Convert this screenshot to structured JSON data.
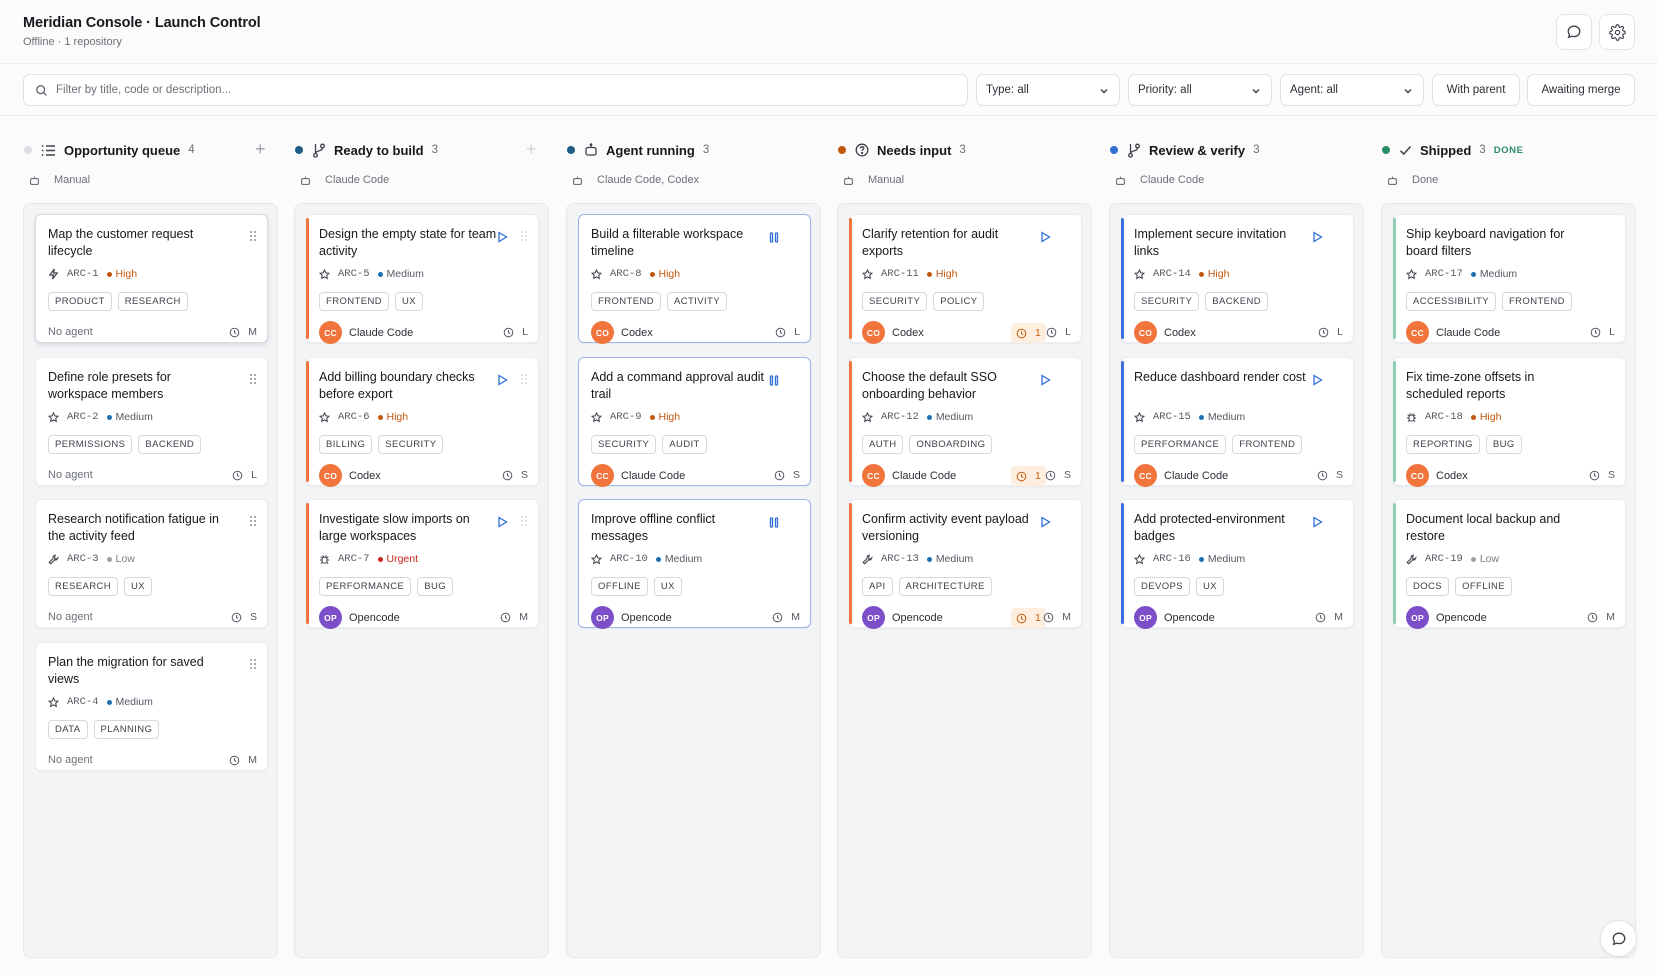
{
  "header": {
    "title": "Meridian Console · Launch Control",
    "subtitle": "Offline · 1 repository",
    "icons": [
      "chat-icon",
      "gear-icon"
    ]
  },
  "toolbar": {
    "search_placeholder": "Filter by title, code or description...",
    "type_filter": "Type: all",
    "priority_filter": "Priority: all",
    "agent_filter": "Agent: all",
    "with_parent_label": "With parent",
    "awaiting_merge_label": "Awaiting merge"
  },
  "colors": {
    "high": "#c2570c",
    "medium": "#1e6fb0",
    "low": "#9aa0a8",
    "urgent": "#c8241e",
    "codex_avatar": "#f0743c",
    "opencode_avatar": "#7c4fc8"
  },
  "columns": [
    {
      "title": "Opportunity queue",
      "count": "4",
      "meta": "Manual",
      "dot_color": "#dcdee2",
      "icon": "list-icon",
      "cards": [
        {
          "title": "Map the customer request lifecycle",
          "type_icon": "bolt-icon",
          "code": "ARC-1",
          "priority": "High",
          "prio_key": "high",
          "tags": [
            "PRODUCT",
            "RESEARCH"
          ],
          "agent": "No agent",
          "estimate": "M",
          "selected": true
        },
        {
          "title": "Define role presets for workspace members",
          "type_icon": "star-icon",
          "code": "ARC-2",
          "priority": "Medium",
          "prio_key": "medium",
          "tags": [
            "PERMISSIONS",
            "BACKEND"
          ],
          "agent": "No agent",
          "estimate": "L"
        },
        {
          "title": "Research notification fatigue in the activity feed",
          "type_icon": "wrench-icon",
          "code": "ARC-3",
          "priority": "Low",
          "prio_key": "low",
          "tags": [
            "RESEARCH",
            "UX"
          ],
          "agent": "No agent",
          "estimate": "S"
        },
        {
          "title": "Plan the migration for saved views",
          "type_icon": "star-icon",
          "code": "ARC-4",
          "priority": "Medium",
          "prio_key": "medium",
          "tags": [
            "DATA",
            "PLANNING"
          ],
          "agent": "No agent",
          "estimate": "M"
        }
      ]
    },
    {
      "title": "Ready to build",
      "count": "3",
      "meta": "Claude Code",
      "dot_color": "#1d5c86",
      "icon": "branch-icon",
      "cards": [
        {
          "title": "Design the empty state for team activity",
          "type_icon": "star-icon",
          "code": "ARC-5",
          "priority": "Medium",
          "prio_key": "medium",
          "tags": [
            "FRONTEND",
            "UX"
          ],
          "agent": "Claude Code",
          "avatar": "CC",
          "estimate": "L"
        },
        {
          "title": "Add billing boundary checks before export",
          "type_icon": "star-icon",
          "code": "ARC-6",
          "priority": "High",
          "prio_key": "high",
          "tags": [
            "BILLING",
            "SECURITY"
          ],
          "agent": "Codex",
          "avatar": "CO",
          "estimate": "S"
        },
        {
          "title": "Investigate slow imports on large workspaces",
          "type_icon": "bug-icon",
          "code": "ARC-7",
          "priority": "Urgent",
          "prio_key": "urgent",
          "tags": [
            "PERFORMANCE",
            "BUG"
          ],
          "agent": "Opencode",
          "avatar": "OP",
          "estimate": "M"
        }
      ]
    },
    {
      "title": "Agent running",
      "count": "3",
      "meta": "Claude Code, Codex",
      "dot_color": "#1d5c86",
      "icon": "robot-icon",
      "cards": [
        {
          "title": "Build a filterable workspace timeline",
          "type_icon": "star-icon",
          "code": "ARC-8",
          "priority": "High",
          "prio_key": "high",
          "tags": [
            "FRONTEND",
            "ACTIVITY"
          ],
          "agent": "Codex",
          "avatar": "CO",
          "estimate": "L"
        },
        {
          "title": "Add a command approval audit trail",
          "type_icon": "star-icon",
          "code": "ARC-9",
          "priority": "High",
          "prio_key": "high",
          "tags": [
            "SECURITY",
            "AUDIT"
          ],
          "agent": "Claude Code",
          "avatar": "CC",
          "estimate": "S"
        },
        {
          "title": "Improve offline conflict messages",
          "type_icon": "star-icon",
          "code": "ARC-10",
          "priority": "Medium",
          "prio_key": "medium",
          "tags": [
            "OFFLINE",
            "UX"
          ],
          "agent": "Opencode",
          "avatar": "OP",
          "estimate": "M"
        }
      ]
    },
    {
      "title": "Needs input",
      "count": "3",
      "meta": "Manual",
      "dot_color": "#c2570c",
      "icon": "question-icon",
      "cards": [
        {
          "title": "Clarify retention for audit exports",
          "type_icon": "star-icon",
          "code": "ARC-11",
          "priority": "High",
          "prio_key": "high",
          "tags": [
            "SECURITY",
            "POLICY"
          ],
          "agent": "Codex",
          "avatar": "CO",
          "alert": "1",
          "estimate": "L"
        },
        {
          "title": "Choose the default SSO onboarding behavior",
          "type_icon": "star-icon",
          "code": "ARC-12",
          "priority": "Medium",
          "prio_key": "medium",
          "tags": [
            "AUTH",
            "ONBOARDING"
          ],
          "agent": "Claude Code",
          "avatar": "CC",
          "alert": "1",
          "estimate": "S"
        },
        {
          "title": "Confirm activity event payload versioning",
          "type_icon": "wrench-icon",
          "code": "ARC-13",
          "priority": "Medium",
          "prio_key": "medium",
          "tags": [
            "API",
            "ARCHITECTURE"
          ],
          "agent": "Opencode",
          "avatar": "OP",
          "alert": "1",
          "estimate": "M"
        }
      ]
    },
    {
      "title": "Review & verify",
      "count": "3",
      "meta": "Claude Code",
      "dot_color": "#2f6fd6",
      "icon": "branch-icon",
      "cards": [
        {
          "title": "Implement secure invitation links",
          "type_icon": "star-icon",
          "code": "ARC-14",
          "priority": "High",
          "prio_key": "high",
          "tags": [
            "SECURITY",
            "BACKEND"
          ],
          "agent": "Codex",
          "avatar": "CO",
          "estimate": "L"
        },
        {
          "title": "Reduce dashboard render cost",
          "type_icon": "star-icon",
          "code": "ARC-15",
          "priority": "Medium",
          "prio_key": "medium",
          "tags": [
            "PERFORMANCE",
            "FRONTEND"
          ],
          "agent": "Claude Code",
          "avatar": "CC",
          "estimate": "S"
        },
        {
          "title": "Add protected-environment badges",
          "type_icon": "star-icon",
          "code": "ARC-16",
          "priority": "Medium",
          "prio_key": "medium",
          "tags": [
            "DEVOPS",
            "UX"
          ],
          "agent": "Opencode",
          "avatar": "OP",
          "estimate": "M"
        }
      ]
    },
    {
      "title": "Shipped",
      "count": "3",
      "done_label": "DONE",
      "meta": "Done",
      "dot_color": "#2a8c64",
      "icon": "check-icon",
      "cards": [
        {
          "title": "Ship keyboard navigation for board filters",
          "type_icon": "star-icon",
          "code": "ARC-17",
          "priority": "Medium",
          "prio_key": "medium",
          "tags": [
            "ACCESSIBILITY",
            "FRONTEND"
          ],
          "agent": "Claude Code",
          "avatar": "CC",
          "estimate": "L"
        },
        {
          "title": "Fix time-zone offsets in scheduled reports",
          "type_icon": "bug-icon",
          "code": "ARC-18",
          "priority": "High",
          "prio_key": "high",
          "tags": [
            "REPORTING",
            "BUG"
          ],
          "agent": "Codex",
          "avatar": "CO",
          "estimate": "S"
        },
        {
          "title": "Document local backup and restore",
          "type_icon": "wrench-icon",
          "code": "ARC-19",
          "priority": "Low",
          "prio_key": "low",
          "tags": [
            "DOCS",
            "OFFLINE"
          ],
          "agent": "Opencode",
          "avatar": "OP",
          "estimate": "M"
        }
      ]
    }
  ]
}
